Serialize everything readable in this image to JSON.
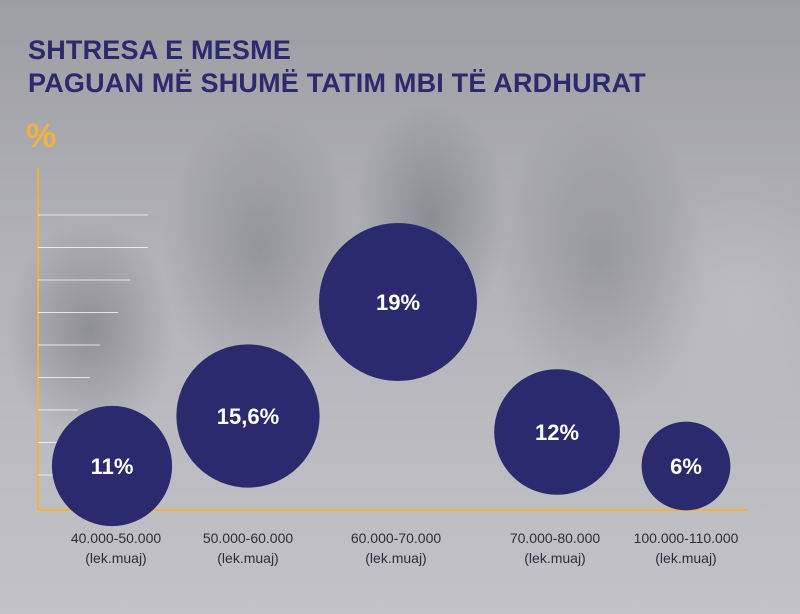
{
  "title": {
    "line1": "SHTRESA E MESME",
    "line2": "PAGUAN MË SHUMË TATIM MBI TË ARDHURAT"
  },
  "colors": {
    "bubble": "#2b2a6e",
    "title": "#2b2a6e",
    "axis": "#f0b43c",
    "text": "#2e2e3a"
  },
  "chart_data": {
    "type": "bubble",
    "y_unit": "%",
    "categories": [
      "40.000-50.000\n(lek.muaj)",
      "50.000-60.000\n(lek.muaj)",
      "60.000-70.000\n(lek.muaj)",
      "70.000-80.000\n(lek.muaj)",
      "100.000-110.000\n(lek.muaj)"
    ],
    "values": [
      11,
      15.6,
      19,
      12,
      6
    ],
    "value_labels": [
      "11%",
      "15,6%",
      "19%",
      "12%",
      "6%"
    ],
    "grid": false,
    "legend": "none"
  }
}
